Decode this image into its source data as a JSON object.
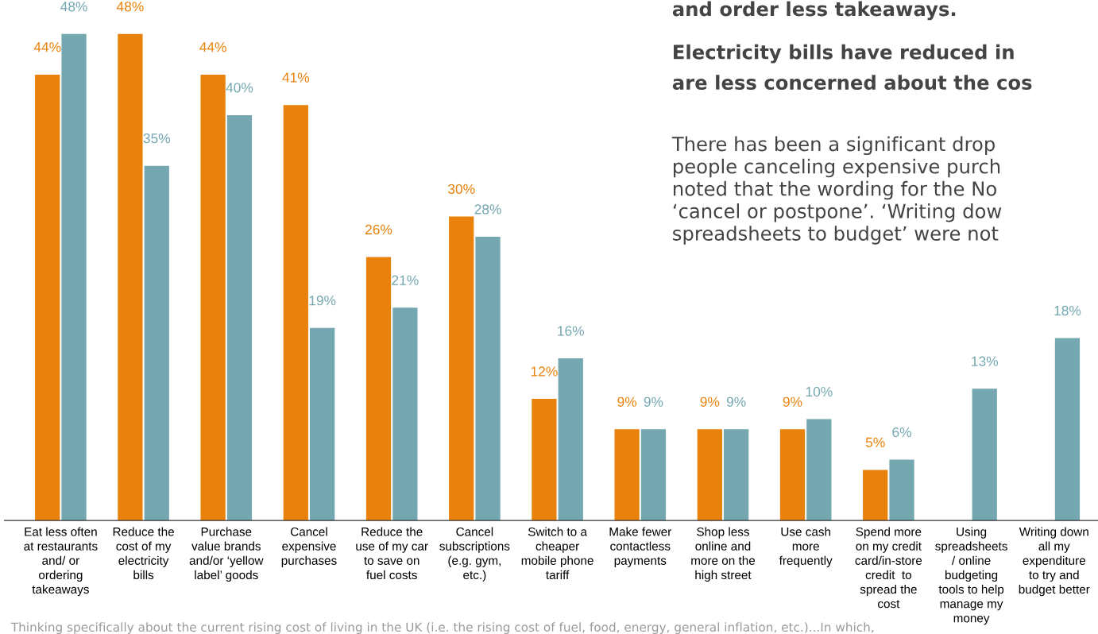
{
  "chart_data": {
    "type": "bar",
    "categories": [
      "Eat less often\nat restaurants\nand/ or\nordering\ntakeaways",
      "Reduce the\ncost of my\nelectricity\nbills",
      "Purchase\nvalue brands\nand/or ‘yellow\nlabel’ goods",
      "Cancel\nexpensive\npurchases",
      "Reduce the\nuse of my car\nto save on\nfuel costs",
      "Cancel\nsubscriptions\n(e.g. gym,\netc.)",
      "Switch to a\ncheaper\nmobile phone\ntariff",
      "Make fewer\ncontactless\npayments",
      "Shop less\nonline and\nmore on the\nhigh street",
      "Use cash\nmore\nfrequently",
      "Spend more\non my credit\ncard/in-store\ncredit  to\nspread the\ncost",
      "Using\nspreadsheets\n/ online\nbudgeting\ntools to help\nmanage my\nmoney",
      "Writing down\nall my\nexpenditure\nto try and\nbudget better"
    ],
    "series": [
      {
        "color": "#e8820c",
        "values": [
          44,
          48,
          44,
          41,
          26,
          30,
          12,
          9,
          9,
          9,
          5,
          null,
          null
        ],
        "value_labels": [
          "44%",
          "48%",
          "44%",
          "41%",
          "26%",
          "30%",
          "12%",
          "9%",
          "9%",
          "9%",
          "5%",
          null,
          null
        ]
      },
      {
        "color": "#74a7b0",
        "values": [
          48,
          35,
          40,
          19,
          21,
          28,
          16,
          9,
          9,
          10,
          6,
          13,
          18
        ],
        "value_labels": [
          "48%",
          "35%",
          "40%",
          "19%",
          "21%",
          "28%",
          "16%",
          "9%",
          "9%",
          "10%",
          "6%",
          "13%",
          "18%"
        ]
      }
    ],
    "grid": false,
    "legend": false,
    "annotations": [
      "and order less takeaways.",
      "Electricity bills have reduced in",
      "are less concerned about the cos",
      "There has been a significant drop\npeople canceling expensive purch\nnoted that the wording for the No\n‘cancel or postpone’. ‘Writing dow\nspreadsheets to budget’ were not",
      "Thinking specifically about the current rising cost of living in the UK (i.e. the rising cost of fuel, food, energy, general inflation, etc.)...In which,"
    ]
  }
}
